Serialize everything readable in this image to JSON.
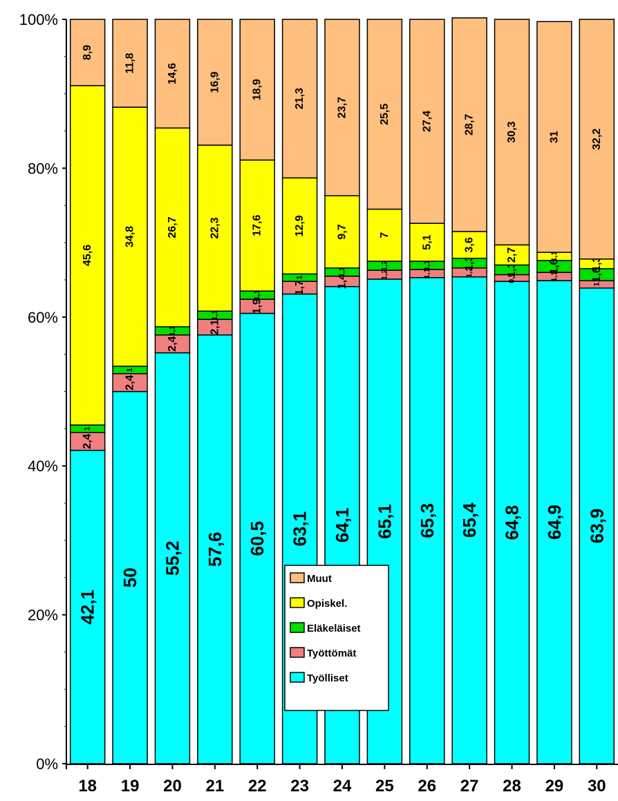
{
  "chart_data": {
    "type": "bar",
    "stacked": true,
    "categories": [
      "18",
      "19",
      "20",
      "21",
      "22",
      "23",
      "24",
      "25",
      "26",
      "27",
      "28",
      "29",
      "30"
    ],
    "series": [
      {
        "name": "Työlliset",
        "color": "#00ffff",
        "values": [
          42.1,
          50,
          55.2,
          57.6,
          60.5,
          63.1,
          64.1,
          65.1,
          65.3,
          65.4,
          64.8,
          64.9,
          63.9
        ],
        "labels": [
          "42,1",
          "50",
          "55,2",
          "57,6",
          "60,5",
          "63,1",
          "64,1",
          "65,1",
          "65,3",
          "65,4",
          "64,8",
          "64,9",
          "63,9"
        ]
      },
      {
        "name": "Työttömät",
        "color": "#f08080",
        "values": [
          2.4,
          2.4,
          2.4,
          2.1,
          1.9,
          1.7,
          1.4,
          1.2,
          1.1,
          1.2,
          0.9,
          1.1,
          1.0
        ],
        "labels": [
          "2,4",
          "2,4",
          "2,4",
          "2,1",
          "1,9",
          "1,7",
          "1,4",
          "1,2",
          "1,1",
          "1,2",
          "0,9",
          "1,1",
          "1"
        ]
      },
      {
        "name": "Eläkeläiset",
        "color": "#00e000",
        "values": [
          1.0,
          1.0,
          1.1,
          1.1,
          1.1,
          1.0,
          1.1,
          1.2,
          1.1,
          1.3,
          1.3,
          1.6,
          1.6
        ],
        "labels": [
          "1",
          "1",
          "1,1",
          "1,1",
          "1,1",
          "1",
          "1,1",
          "1,2",
          "1,1",
          "1,3",
          "1,3",
          "1,6",
          "1,6"
        ]
      },
      {
        "name": "Opiskel.",
        "color": "#ffff00",
        "values": [
          45.6,
          34.8,
          26.7,
          22.3,
          17.6,
          12.9,
          9.7,
          7,
          5.1,
          3.6,
          2.7,
          1.1,
          1.3
        ],
        "labels": [
          "45,6",
          "34,8",
          "26,7",
          "22,3",
          "17,6",
          "12,9",
          "9,7",
          "7",
          "5,1",
          "3,6",
          "2,7",
          "1,1",
          "1,3"
        ]
      },
      {
        "name": "Muut",
        "color": "#ffbf7f",
        "values": [
          8.9,
          11.8,
          14.6,
          16.9,
          18.9,
          21.3,
          23.7,
          25.5,
          27.4,
          28.7,
          30.3,
          31,
          32.2
        ],
        "labels": [
          "8,9",
          "11,8",
          "14,6",
          "16,9",
          "18,9",
          "21,3",
          "23,7",
          "25,5",
          "27,4",
          "28,7",
          "30,3",
          "31",
          "32,2"
        ]
      }
    ],
    "yticks": [
      "0%",
      "20%",
      "40%",
      "60%",
      "80%",
      "100%"
    ],
    "ylim": [
      0,
      100
    ],
    "legend": {
      "placement": "center",
      "order": [
        "Muut",
        "Opiskel.",
        "Eläkeläiset",
        "Työttömät",
        "Työlliset"
      ]
    }
  }
}
